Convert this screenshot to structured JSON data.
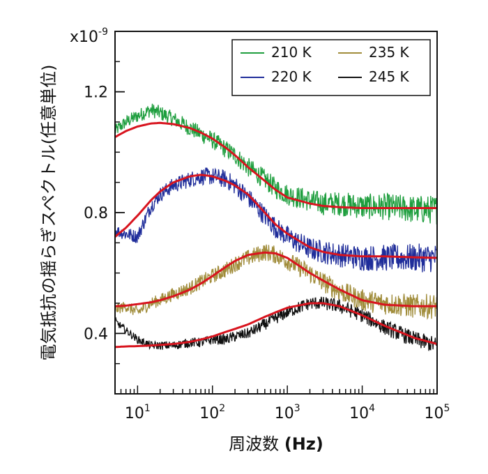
{
  "chart_data": {
    "type": "line",
    "xlabel": "周波数",
    "xlabel_unit": "(Hz)",
    "ylabel": "電気抵抗の揺らぎスペクトル(任意単位)",
    "y_multiplier": "x10",
    "y_multiplier_exp": "-9",
    "x_scale": "log",
    "xlim": [
      5,
      100000
    ],
    "ylim": [
      0.2,
      1.4
    ],
    "x_ticks": [
      {
        "base": "10",
        "exp": "1",
        "value": 10
      },
      {
        "base": "10",
        "exp": "2",
        "value": 100
      },
      {
        "base": "10",
        "exp": "3",
        "value": 1000
      },
      {
        "base": "10",
        "exp": "4",
        "value": 10000
      },
      {
        "base": "10",
        "exp": "5",
        "value": 100000
      }
    ],
    "y_ticks": [
      {
        "label": "0.4",
        "value": 0.4
      },
      {
        "label": "0.8",
        "value": 0.8
      },
      {
        "label": "1.2",
        "value": 1.2
      }
    ],
    "legend_position": "top-right",
    "series": [
      {
        "name": "210 K",
        "color": "#1e9e3e",
        "x": [
          5,
          7,
          10,
          15,
          20,
          30,
          50,
          70,
          100,
          150,
          200,
          300,
          500,
          700,
          1000,
          2000,
          3000,
          5000,
          10000,
          20000,
          50000,
          100000
        ],
        "y": [
          1.07,
          1.1,
          1.12,
          1.14,
          1.13,
          1.11,
          1.08,
          1.06,
          1.04,
          1.01,
          0.99,
          0.95,
          0.91,
          0.88,
          0.86,
          0.84,
          0.83,
          0.83,
          0.82,
          0.82,
          0.81,
          0.81
        ],
        "noise": 0.035
      },
      {
        "name": "220 K",
        "color": "#1f2d9a",
        "x": [
          5,
          7,
          10,
          15,
          20,
          30,
          50,
          70,
          100,
          150,
          200,
          300,
          500,
          700,
          1000,
          2000,
          3000,
          5000,
          10000,
          20000,
          50000,
          100000
        ],
        "y": [
          0.74,
          0.73,
          0.72,
          0.82,
          0.86,
          0.89,
          0.91,
          0.92,
          0.92,
          0.91,
          0.89,
          0.85,
          0.79,
          0.75,
          0.72,
          0.68,
          0.67,
          0.66,
          0.65,
          0.65,
          0.65,
          0.65
        ],
        "noise": 0.035
      },
      {
        "name": "235 K",
        "color": "#a08c3a",
        "x": [
          5,
          7,
          10,
          15,
          20,
          30,
          50,
          70,
          100,
          150,
          200,
          300,
          500,
          700,
          1000,
          2000,
          3000,
          5000,
          10000,
          20000,
          50000,
          100000
        ],
        "y": [
          0.48,
          0.49,
          0.47,
          0.5,
          0.51,
          0.53,
          0.55,
          0.57,
          0.59,
          0.61,
          0.63,
          0.65,
          0.67,
          0.66,
          0.64,
          0.6,
          0.57,
          0.54,
          0.51,
          0.5,
          0.49,
          0.49
        ],
        "noise": 0.03
      },
      {
        "name": "245 K",
        "color": "#111111",
        "x": [
          5,
          7,
          10,
          15,
          20,
          30,
          50,
          70,
          100,
          150,
          200,
          300,
          500,
          700,
          1000,
          2000,
          3000,
          5000,
          10000,
          20000,
          50000,
          100000
        ],
        "y": [
          0.44,
          0.41,
          0.38,
          0.36,
          0.36,
          0.36,
          0.37,
          0.37,
          0.38,
          0.38,
          0.39,
          0.4,
          0.43,
          0.45,
          0.47,
          0.5,
          0.5,
          0.49,
          0.46,
          0.42,
          0.38,
          0.36
        ],
        "noise": 0.02
      }
    ],
    "fits": [
      {
        "color": "#d8141e",
        "x": [
          5,
          7,
          10,
          15,
          20,
          30,
          50,
          70,
          100,
          150,
          200,
          300,
          500,
          700,
          1000,
          2000,
          3000,
          5000,
          10000,
          20000,
          50000,
          100000
        ],
        "y": [
          1.05,
          1.07,
          1.085,
          1.095,
          1.097,
          1.093,
          1.08,
          1.065,
          1.045,
          1.015,
          0.99,
          0.95,
          0.905,
          0.875,
          0.85,
          0.83,
          0.822,
          0.818,
          0.815,
          0.815,
          0.815,
          0.815
        ]
      },
      {
        "color": "#d8141e",
        "x": [
          5,
          7,
          10,
          15,
          20,
          30,
          50,
          70,
          100,
          150,
          200,
          300,
          500,
          700,
          1000,
          2000,
          3000,
          5000,
          10000,
          20000,
          50000,
          100000
        ],
        "y": [
          0.72,
          0.75,
          0.79,
          0.84,
          0.87,
          0.9,
          0.92,
          0.925,
          0.92,
          0.905,
          0.89,
          0.86,
          0.8,
          0.76,
          0.73,
          0.685,
          0.67,
          0.66,
          0.655,
          0.655,
          0.652,
          0.65
        ]
      },
      {
        "color": "#d8141e",
        "x": [
          5,
          7,
          10,
          15,
          20,
          30,
          50,
          70,
          100,
          150,
          200,
          300,
          500,
          700,
          1000,
          2000,
          3000,
          5000,
          10000,
          20000,
          50000,
          100000
        ],
        "y": [
          0.49,
          0.492,
          0.497,
          0.503,
          0.51,
          0.523,
          0.545,
          0.565,
          0.59,
          0.62,
          0.64,
          0.66,
          0.668,
          0.665,
          0.65,
          0.6,
          0.575,
          0.545,
          0.51,
          0.495,
          0.49,
          0.49
        ]
      },
      {
        "color": "#d8141e",
        "x": [
          5,
          7,
          10,
          15,
          20,
          30,
          50,
          70,
          100,
          150,
          200,
          300,
          500,
          700,
          1000,
          2000,
          3000,
          5000,
          10000,
          20000,
          50000,
          100000
        ],
        "y": [
          0.355,
          0.357,
          0.358,
          0.36,
          0.362,
          0.365,
          0.372,
          0.38,
          0.39,
          0.405,
          0.415,
          0.43,
          0.455,
          0.47,
          0.485,
          0.5,
          0.5,
          0.49,
          0.46,
          0.425,
          0.385,
          0.365
        ]
      }
    ]
  }
}
